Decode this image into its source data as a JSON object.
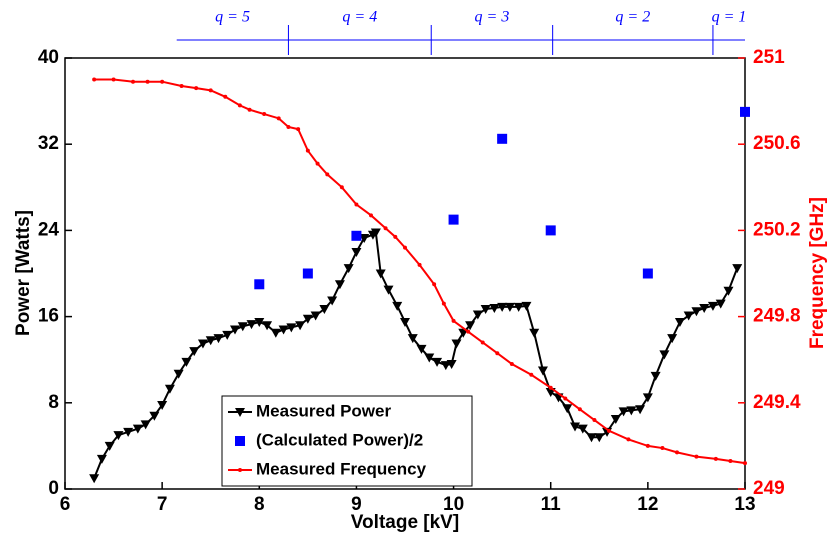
{
  "chart_data": {
    "type": "line",
    "xlabel": "Voltage [kV]",
    "ylabel": "Power [Watts]",
    "y2label": "Frequency [GHz]",
    "xlim": [
      6,
      13
    ],
    "xticks": [
      6,
      7,
      8,
      9,
      10,
      11,
      12,
      13
    ],
    "ylim": [
      0,
      40
    ],
    "yticks": [
      0,
      8,
      16,
      24,
      32,
      40
    ],
    "y2lim": [
      249,
      251
    ],
    "y2ticks": [
      249,
      249.4,
      249.8,
      250.2,
      250.6,
      251
    ],
    "y2color": "#ff0000",
    "legend": "lower center",
    "top_axis": {
      "labels": [
        "q = 5",
        "q = 4",
        "q = 3",
        "q = 2",
        "q = 1"
      ],
      "boundaries": [
        7.15,
        8.3,
        9.77,
        11.02,
        12.67,
        13
      ],
      "color": "#0000ff"
    },
    "series": [
      {
        "name": "Measured Power",
        "color": "#000000",
        "marker": "triangle-down",
        "line": true,
        "axis": "y",
        "x": [
          6.3,
          6.38,
          6.46,
          6.55,
          6.65,
          6.75,
          6.83,
          6.92,
          7.0,
          7.08,
          7.17,
          7.25,
          7.33,
          7.42,
          7.5,
          7.58,
          7.67,
          7.75,
          7.83,
          7.92,
          8.0,
          8.08,
          8.17,
          8.25,
          8.33,
          8.42,
          8.5,
          8.58,
          8.67,
          8.75,
          8.83,
          8.92,
          9.0,
          9.08,
          9.17,
          9.2,
          9.25,
          9.33,
          9.42,
          9.5,
          9.58,
          9.67,
          9.75,
          9.83,
          9.92,
          9.98,
          10.03,
          10.1,
          10.17,
          10.25,
          10.33,
          10.42,
          10.5,
          10.58,
          10.67,
          10.75,
          10.83,
          10.92,
          11.0,
          11.08,
          11.17,
          11.25,
          11.33,
          11.42,
          11.5,
          11.58,
          11.67,
          11.75,
          11.83,
          11.92,
          12.0,
          12.08,
          12.17,
          12.25,
          12.33,
          12.42,
          12.5,
          12.58,
          12.67,
          12.75,
          12.83,
          12.92
        ],
        "values": [
          1.0,
          2.8,
          4.0,
          5.0,
          5.3,
          5.6,
          6.0,
          6.8,
          7.8,
          9.3,
          10.7,
          11.8,
          12.8,
          13.5,
          13.8,
          14.0,
          14.3,
          14.8,
          15.1,
          15.3,
          15.5,
          15.2,
          14.5,
          14.8,
          15.0,
          15.2,
          15.8,
          16.1,
          16.7,
          17.5,
          19.0,
          20.5,
          22.0,
          23.3,
          23.6,
          23.8,
          20.0,
          18.5,
          17.0,
          15.5,
          14.0,
          13.0,
          12.2,
          11.8,
          11.5,
          11.6,
          13.5,
          14.5,
          15.2,
          16.2,
          16.7,
          16.8,
          16.9,
          16.9,
          16.9,
          17.0,
          14.5,
          11.0,
          9.0,
          8.5,
          7.5,
          5.8,
          5.6,
          4.8,
          4.8,
          5.3,
          6.5,
          7.2,
          7.3,
          7.4,
          8.5,
          10.5,
          12.5,
          14.0,
          15.5,
          16.1,
          16.5,
          16.8,
          17.0,
          17.2,
          18.4,
          20.5
        ]
      },
      {
        "name": "(Calculated Power)/2",
        "color": "#0000ff",
        "marker": "square",
        "line": false,
        "axis": "y",
        "x": [
          8,
          8.5,
          9,
          10,
          10.5,
          11,
          12,
          13
        ],
        "values": [
          19,
          20,
          23.5,
          25,
          32.5,
          24,
          20,
          35
        ]
      },
      {
        "name": "Measured Frequency",
        "color": "#ff0000",
        "marker": "dot",
        "line": true,
        "axis": "y2",
        "x": [
          6.3,
          6.5,
          6.7,
          6.85,
          7.0,
          7.2,
          7.35,
          7.5,
          7.65,
          7.8,
          7.9,
          8.05,
          8.2,
          8.3,
          8.4,
          8.5,
          8.6,
          8.7,
          8.85,
          9.0,
          9.15,
          9.3,
          9.4,
          9.5,
          9.65,
          9.8,
          9.9,
          10.0,
          10.15,
          10.3,
          10.45,
          10.6,
          10.8,
          11.0,
          11.15,
          11.3,
          11.45,
          11.6,
          11.8,
          12.0,
          12.15,
          12.3,
          12.5,
          12.7,
          12.85,
          13.0
        ],
        "values": [
          250.9,
          250.9,
          250.89,
          250.89,
          250.89,
          250.87,
          250.86,
          250.85,
          250.82,
          250.78,
          250.76,
          250.74,
          250.72,
          250.68,
          250.67,
          250.57,
          250.51,
          250.46,
          250.4,
          250.32,
          250.27,
          250.21,
          250.17,
          250.12,
          250.04,
          249.95,
          249.86,
          249.78,
          249.73,
          249.68,
          249.63,
          249.58,
          249.53,
          249.47,
          249.42,
          249.37,
          249.32,
          249.27,
          249.23,
          249.2,
          249.19,
          249.17,
          249.15,
          249.14,
          249.13,
          249.12
        ]
      }
    ]
  }
}
